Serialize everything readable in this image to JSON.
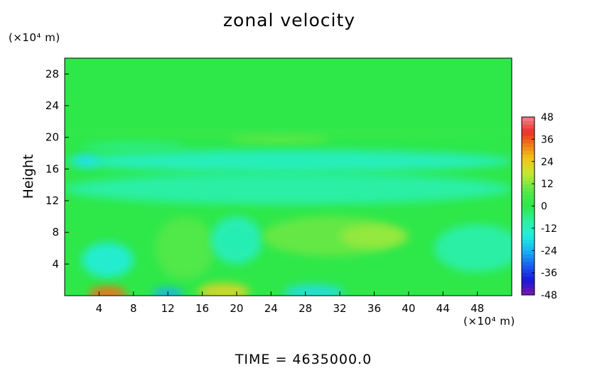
{
  "chart_data": {
    "type": "heatmap",
    "title": "zonal velocity",
    "ylabel": "Height",
    "y_unit": "(×10⁴ m)",
    "x_unit": "(×10⁴ m)",
    "footer": "TIME = 4635000.0",
    "xlim": [
      0,
      52
    ],
    "ylim": [
      0,
      30
    ],
    "xticks": [
      4,
      8,
      12,
      16,
      20,
      24,
      28,
      32,
      36,
      40,
      44,
      48
    ],
    "yticks": [
      4,
      8,
      12,
      16,
      20,
      24,
      28
    ],
    "colorbar": {
      "ticks": [
        48,
        36,
        24,
        12,
        0,
        -12,
        -24,
        -36,
        -48
      ],
      "range": [
        -48,
        48
      ],
      "stops": [
        {
          "v": 48,
          "color": "#f2858c"
        },
        {
          "v": 40,
          "color": "#e8302a"
        },
        {
          "v": 34,
          "color": "#f0701a"
        },
        {
          "v": 26,
          "color": "#f2c418"
        },
        {
          "v": 18,
          "color": "#c8e632"
        },
        {
          "v": 8,
          "color": "#55e84a"
        },
        {
          "v": 0,
          "color": "#2ee84a"
        },
        {
          "v": -8,
          "color": "#2ef0a0"
        },
        {
          "v": -16,
          "color": "#22eedd"
        },
        {
          "v": -24,
          "color": "#18b4f0"
        },
        {
          "v": -32,
          "color": "#1a5ef0"
        },
        {
          "v": -40,
          "color": "#1616d8"
        },
        {
          "v": -48,
          "color": "#7a1aa8"
        }
      ]
    },
    "background_value": 0,
    "features": [
      {
        "x": 5,
        "y": 0.2,
        "rx": 2.2,
        "ry": 1.0,
        "value": 34
      },
      {
        "x": 12,
        "y": 0.2,
        "rx": 1.8,
        "ry": 0.8,
        "value": -24
      },
      {
        "x": 18.5,
        "y": 0.5,
        "rx": 3,
        "ry": 1.1,
        "value": 22
      },
      {
        "x": 29,
        "y": 0.4,
        "rx": 3.5,
        "ry": 1.0,
        "value": -18
      },
      {
        "x": 5,
        "y": 4.5,
        "rx": 3,
        "ry": 2.2,
        "value": -16
      },
      {
        "x": 14,
        "y": 6,
        "rx": 3.5,
        "ry": 4,
        "value": 8
      },
      {
        "x": 20,
        "y": 7,
        "rx": 3,
        "ry": 3,
        "value": -12
      },
      {
        "x": 31,
        "y": 7.5,
        "rx": 8,
        "ry": 2.5,
        "value": 10
      },
      {
        "x": 36,
        "y": 7.5,
        "rx": 4,
        "ry": 1.5,
        "value": 14
      },
      {
        "x": 48,
        "y": 6,
        "rx": 5,
        "ry": 3,
        "value": -10
      },
      {
        "x": 26,
        "y": 13.5,
        "rx": 26,
        "ry": 2.0,
        "value": -10
      },
      {
        "x": 26,
        "y": 17,
        "rx": 26,
        "ry": 1.4,
        "value": -13
      },
      {
        "x": 2.5,
        "y": 17,
        "rx": 1.5,
        "ry": 0.8,
        "value": -18
      },
      {
        "x": 25,
        "y": 19.8,
        "rx": 6,
        "ry": 0.5,
        "value": 10
      },
      {
        "x": 26,
        "y": 20.6,
        "rx": 26,
        "ry": 0.3,
        "value": 4
      },
      {
        "x": 8,
        "y": 18.8,
        "rx": 6,
        "ry": 0.6,
        "value": -6
      }
    ]
  }
}
